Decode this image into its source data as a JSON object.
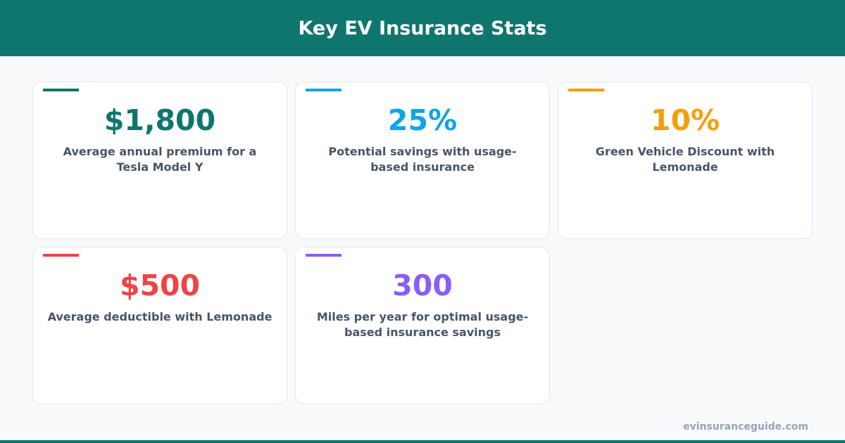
{
  "header": {
    "title": "Key EV Insurance Stats"
  },
  "stats": [
    {
      "value": "$1,800",
      "label": "Average annual premium for a Tesla Model Y",
      "color": "#0f766e"
    },
    {
      "value": "25%",
      "label": "Potential savings with usage-based insurance",
      "color": "#0ea5e9"
    },
    {
      "value": "10%",
      "label": "Green Vehicle Discount with Lemonade",
      "color": "#f59e0b"
    },
    {
      "value": "$500",
      "label": "Average deductible with Lemonade",
      "color": "#ef4444"
    },
    {
      "value": "300",
      "label": "Miles per year for optimal usage-based insurance savings",
      "color": "#8b5cf6"
    }
  ],
  "footer": {
    "site": "evinsuranceguide.com"
  }
}
